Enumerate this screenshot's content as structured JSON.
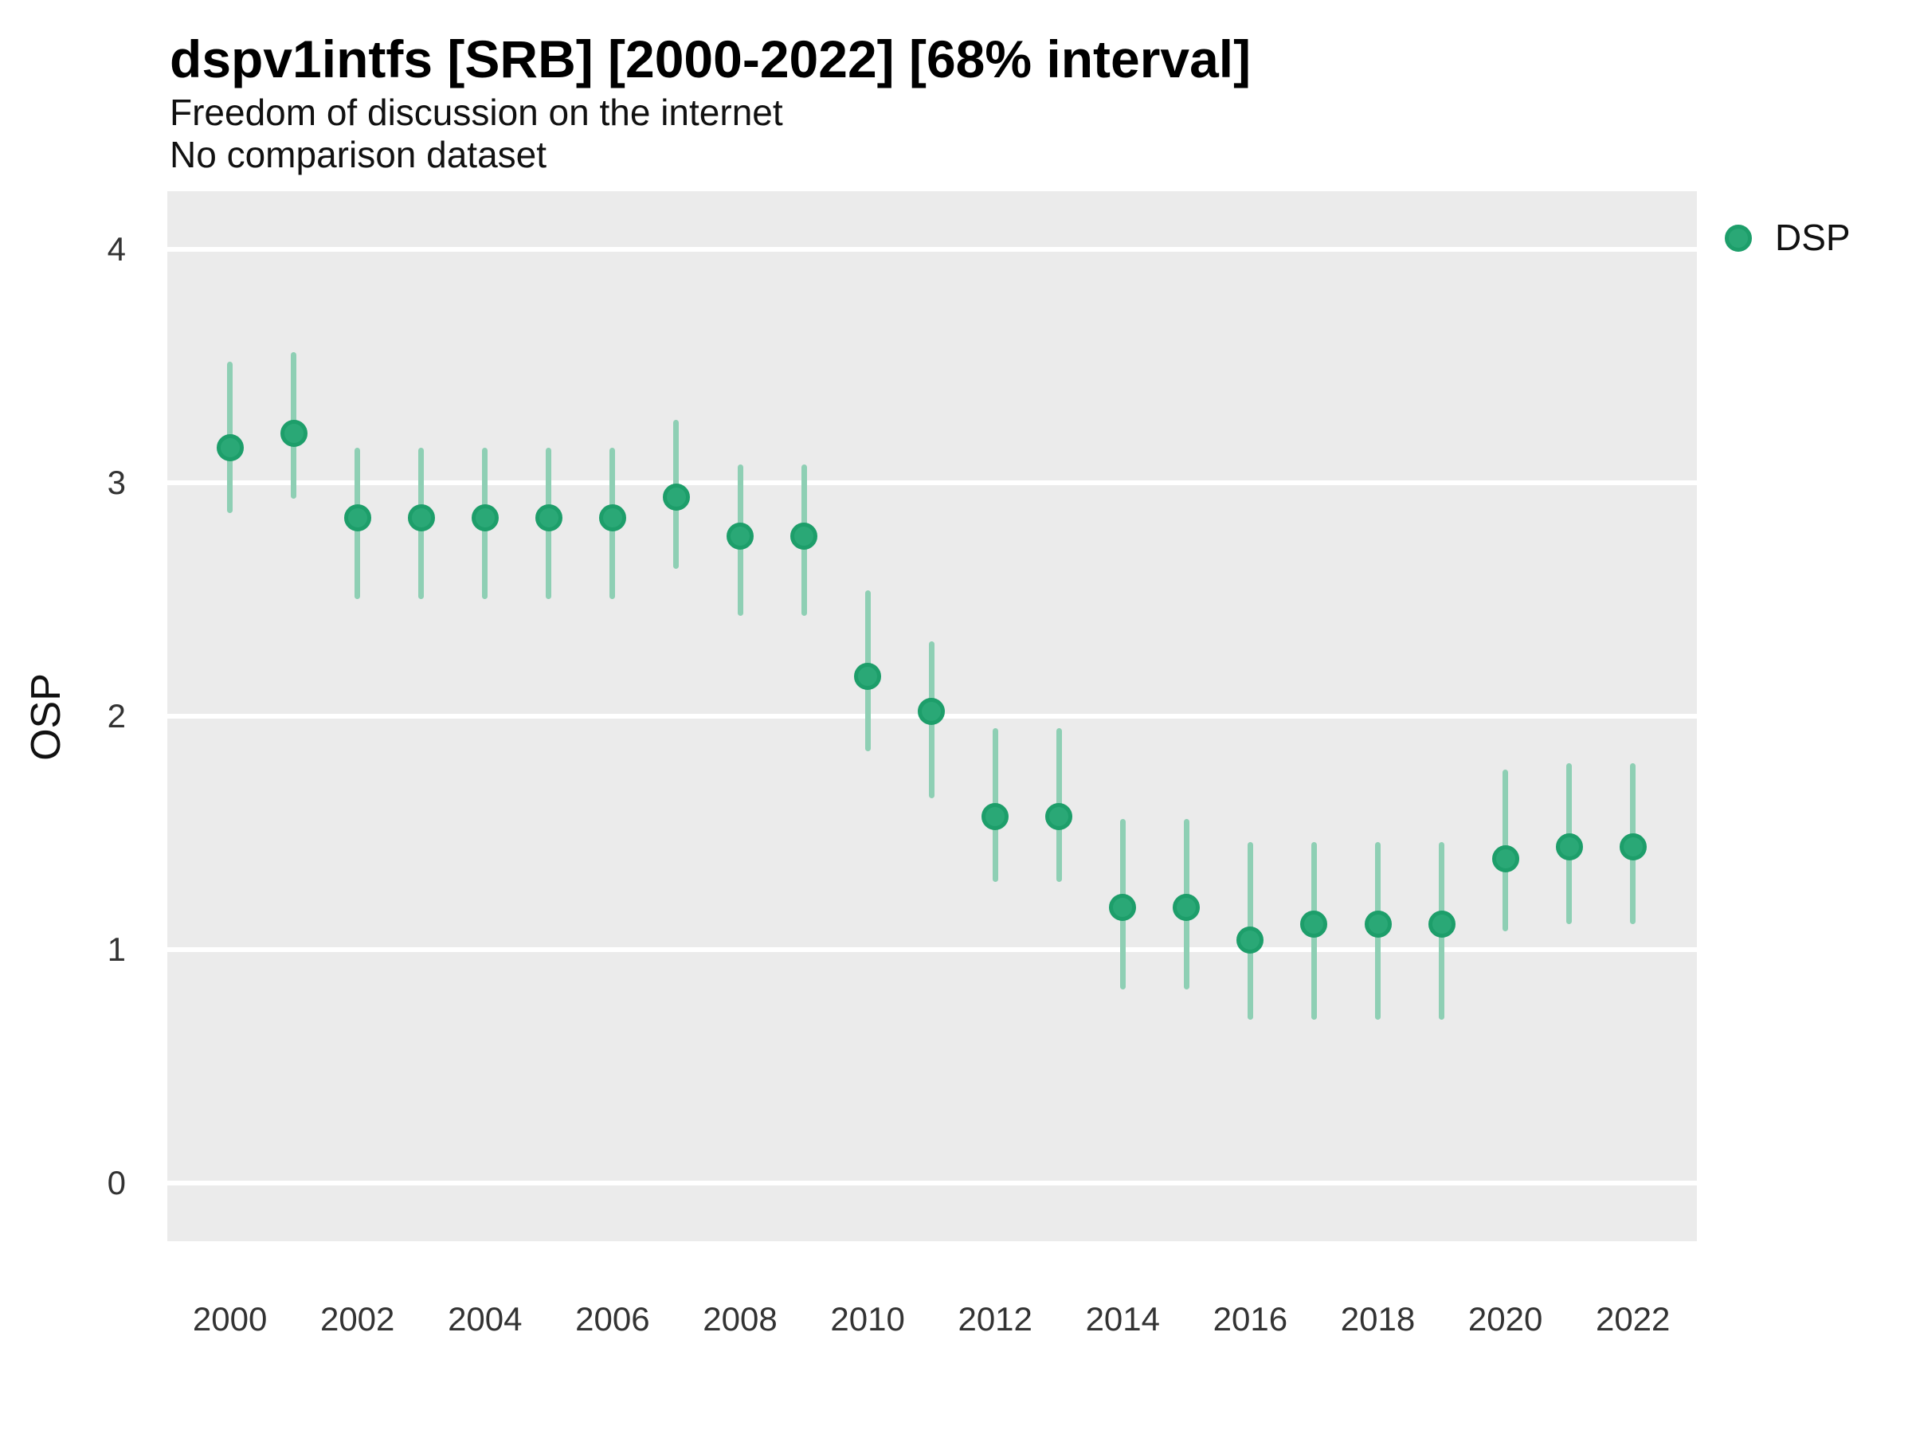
{
  "title": "dspv1intfs [SRB] [2000-2022] [68% interval]",
  "subtitle": "Freedom of discussion on the internet",
  "note": "No comparison dataset",
  "y_axis_label": "OSP",
  "legend": {
    "label": "DSP"
  },
  "colors": {
    "point_fill": "#2aa876",
    "point_ring": "#1d9e6a",
    "error_bar": "#8ecfb4",
    "panel_background": "#ebebeb",
    "gridline": "#ffffff",
    "axis_text": "#333333",
    "text": "#111111"
  },
  "chart_data": {
    "type": "scatter",
    "title": "dspv1intfs [SRB] [2000-2022] [68% interval]",
    "subtitle": "Freedom of discussion on the internet",
    "note": "No comparison dataset",
    "xlabel": "",
    "ylabel": "OSP",
    "interval": "68%",
    "legend_position": "right-top",
    "grid": "horizontal-major-only",
    "ylim": [
      -0.25,
      4.25
    ],
    "y_ticks": [
      0,
      1,
      2,
      3,
      4
    ],
    "x_tick_step": 2,
    "x": [
      2000,
      2001,
      2002,
      2003,
      2004,
      2005,
      2006,
      2007,
      2008,
      2009,
      2010,
      2011,
      2012,
      2013,
      2014,
      2015,
      2016,
      2017,
      2018,
      2019,
      2020,
      2021,
      2022
    ],
    "series": [
      {
        "name": "DSP",
        "values": [
          3.15,
          3.21,
          2.85,
          2.85,
          2.85,
          2.85,
          2.85,
          2.94,
          2.77,
          2.77,
          2.17,
          2.02,
          1.57,
          1.57,
          1.18,
          1.18,
          1.04,
          1.11,
          1.11,
          1.11,
          1.39,
          1.44,
          1.44
        ],
        "ci68_low": [
          2.87,
          2.93,
          2.5,
          2.5,
          2.5,
          2.5,
          2.5,
          2.63,
          2.43,
          2.43,
          1.85,
          1.65,
          1.29,
          1.29,
          0.83,
          0.83,
          0.7,
          0.7,
          0.7,
          0.7,
          1.08,
          1.11,
          1.11
        ],
        "ci68_high": [
          3.52,
          3.56,
          3.15,
          3.15,
          3.15,
          3.15,
          3.15,
          3.27,
          3.08,
          3.08,
          2.54,
          2.32,
          1.95,
          1.95,
          1.56,
          1.56,
          1.46,
          1.46,
          1.46,
          1.46,
          1.77,
          1.8,
          1.8
        ]
      }
    ]
  }
}
